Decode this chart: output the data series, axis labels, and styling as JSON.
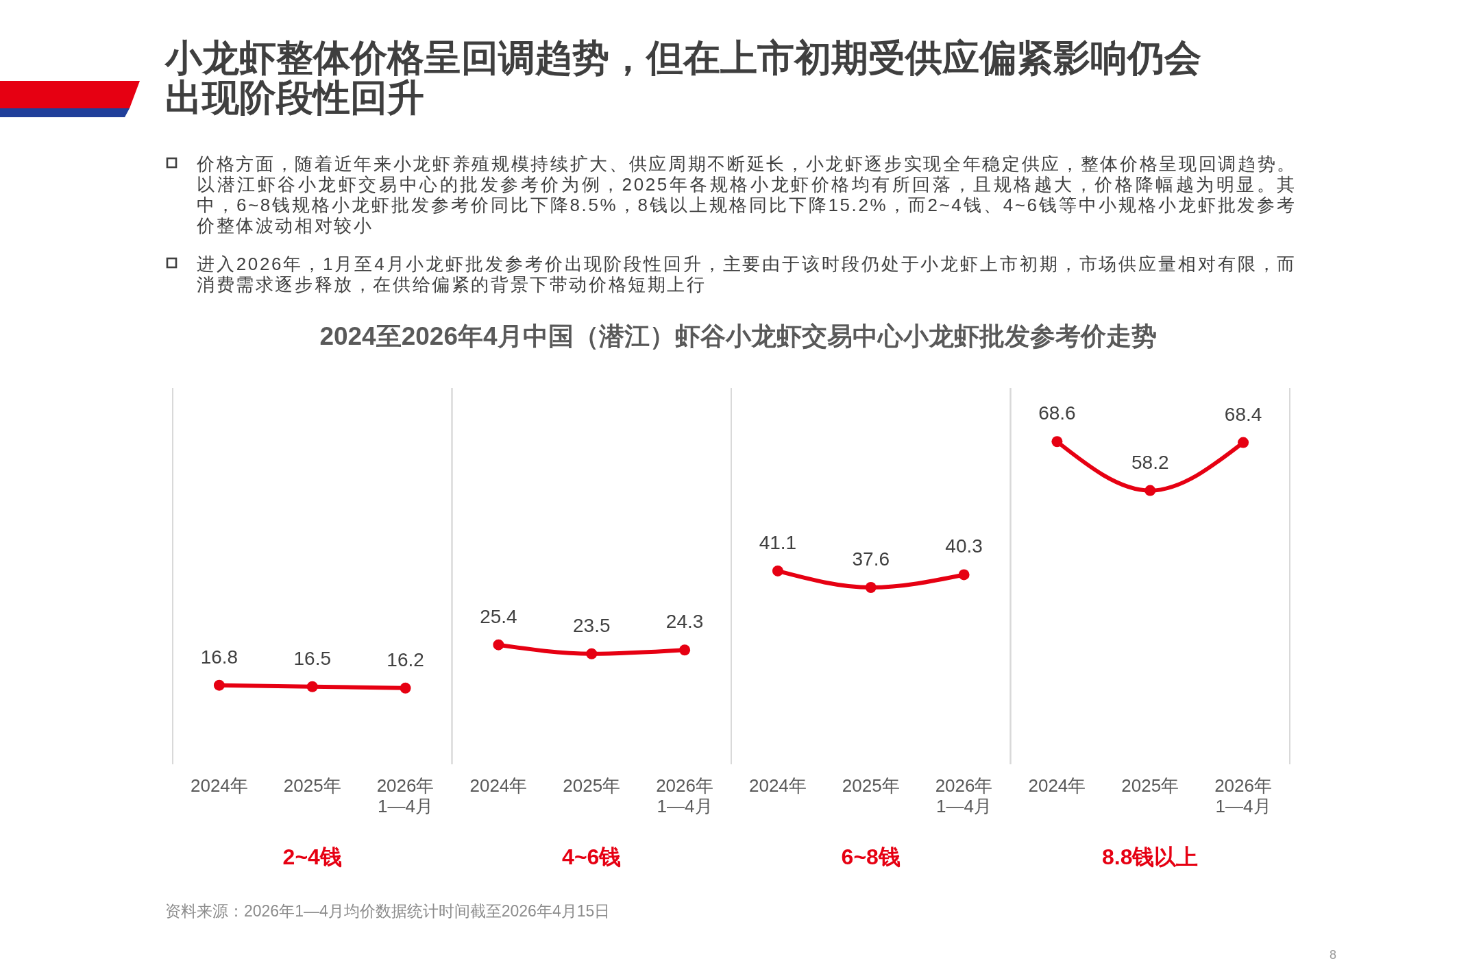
{
  "chart_data": [
    {
      "type": "other",
      "title": "小龙虾整体价格呈回调趋势，但在上市初期受供应偏紧影响仍会出现阶段性回升",
      "subtitle": "2024至2026年4月中国（潜江）虾谷小龙虾交易中心小龙虾批发参考价走势",
      "annotations": [
        "价格方面，随着近年来小龙虾养殖规模持续扩大、供应周期不断延长，小龙虾逐步实现全年稳定供应，整体价格呈现回调趋势。以潜江虾谷小龙虾交易中心的批发参考价为例，2025年各规格小龙虾价格均有所回落，且规格越大，价格降幅越为明显。其中，6~8钱规格小龙虾批发参考价同比下降8.5%，8钱以上规格同比下降15.2%，而2~4钱、4~6钱等中小规格小龙虾批发参考价整体波动相对较小",
        "进入2026年，1月至4月小龙虾批发参考价出现阶段性回升，主要由于该时段仍处于小龙虾上市初期，市场供应量相对有限，而消费需求逐步释放，在供给偏紧的背景下带动价格短期上行"
      ]
    },
    {
      "type": "line",
      "xlabel": "2~4钱",
      "categories": [
        "2024年",
        "2025年",
        "2026年\n1—4月"
      ],
      "values": [
        16.8,
        16.5,
        16.2
      ],
      "color": "#e60012",
      "ylim": [
        0,
        80
      ],
      "data_labels": true,
      "marker": "circle",
      "line_style": "solid",
      "tick_labels": "x"
    },
    {
      "type": "line",
      "xlabel": "4~6钱",
      "categories": [
        "2024年",
        "2025年",
        "2026年\n1—4月"
      ],
      "values": [
        25.4,
        23.5,
        24.3
      ],
      "color": "#e60012",
      "ylim": [
        0,
        80
      ],
      "data_labels": true,
      "marker": "circle",
      "line_style": "solid",
      "tick_labels": "x"
    },
    {
      "type": "line",
      "xlabel": "6~8钱",
      "categories": [
        "2024年",
        "2025年",
        "2026年\n1—4月"
      ],
      "values": [
        41.1,
        37.6,
        40.3
      ],
      "color": "#e60012",
      "ylim": [
        0,
        80
      ],
      "data_labels": true,
      "marker": "circle",
      "line_style": "solid",
      "tick_labels": "x"
    },
    {
      "type": "line",
      "xlabel": "8.8钱以上",
      "categories": [
        "2024年",
        "2025年",
        "2026年\n1—4月"
      ],
      "values": [
        68.6,
        58.2,
        68.4
      ],
      "color": "#e60012",
      "ylim": [
        0,
        80
      ],
      "data_labels": true,
      "marker": "circle",
      "line_style": "solid",
      "tick_labels": "x"
    },
    {
      "type": "other",
      "annotations": [
        "资料来源：2026年1—4月均价数据统计时间截至2026年4月15日",
        "8"
      ]
    }
  ]
}
